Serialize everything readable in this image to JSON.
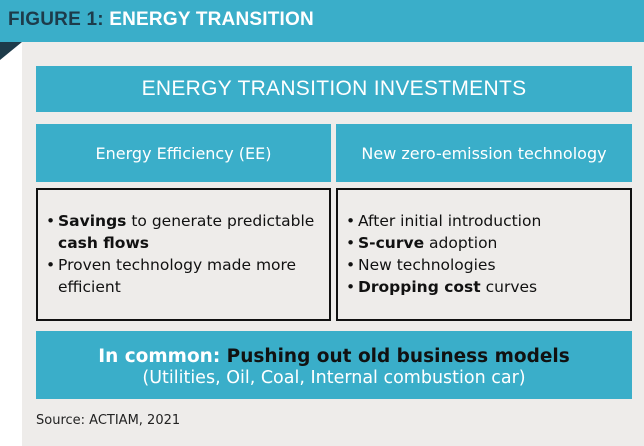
{
  "figure": {
    "label": "FIGURE 1:",
    "title": "ENERGY TRANSITION"
  },
  "diagram": {
    "main_title": "ENERGY TRANSITION INVESTMENTS",
    "columns": [
      {
        "heading": "Energy Efficiency (EE)",
        "items": [
          {
            "bold": "Savings",
            "text": " to generate predictable",
            "bold2": "cash flows",
            "text2": ""
          },
          {
            "bold": "",
            "text": "Proven technology made more efficient",
            "bold2": "",
            "text2": ""
          }
        ]
      },
      {
        "heading": "New zero-emission technology",
        "items": [
          {
            "bold": "",
            "text": "After initial introduction"
          },
          {
            "bold": "S-curve",
            "text": " adoption"
          },
          {
            "bold": "",
            "text": "New technologies"
          },
          {
            "bold": "Dropping cost",
            "text": " curves"
          }
        ]
      }
    ],
    "common": {
      "prefix": "In common:",
      "text": " Pushing out old business models",
      "sub": "(Utilities, Oil, Coal, Internal combustion car)"
    }
  },
  "source": "Source: ACTIAM, 2021",
  "colors": {
    "accent": "#3aaec9",
    "dark": "#1d3b4a",
    "panel": "#eeecea"
  }
}
